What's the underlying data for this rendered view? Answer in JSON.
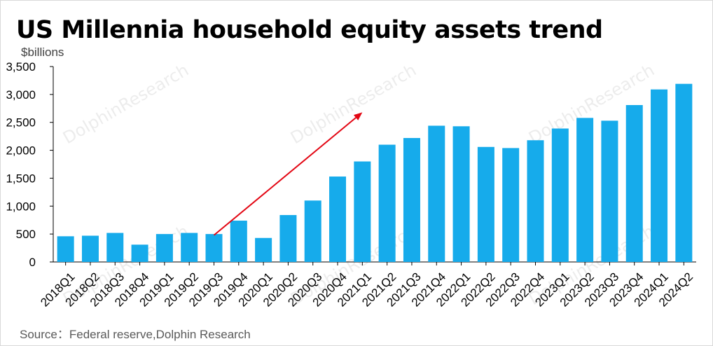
{
  "chart_data": {
    "type": "bar",
    "title": "US Millennia household equity assets trend",
    "ylabel": "$billions",
    "source": "Source：Federal reserve,Dolphin Research",
    "watermark": "DolphinResearch",
    "categories": [
      "2018Q1",
      "2018Q2",
      "2018Q3",
      "2018Q4",
      "2019Q1",
      "2019Q2",
      "2019Q3",
      "2019Q4",
      "2020Q1",
      "2020Q2",
      "2020Q3",
      "2020Q4",
      "2021Q1",
      "2021Q2",
      "2021Q3",
      "2021Q4",
      "2022Q1",
      "2022Q2",
      "2022Q3",
      "2022Q4",
      "2023Q1",
      "2023Q2",
      "2023Q3",
      "2023Q4",
      "2024Q1",
      "2024Q2"
    ],
    "values": [
      460,
      470,
      520,
      310,
      500,
      520,
      500,
      740,
      430,
      840,
      1100,
      1530,
      1800,
      2100,
      2220,
      2440,
      2430,
      2060,
      2040,
      2180,
      2390,
      2580,
      2530,
      2810,
      3090,
      3190
    ],
    "ylim": [
      0,
      3500
    ],
    "yticks": [
      0,
      500,
      1000,
      1500,
      2000,
      2500,
      3000,
      3500
    ],
    "bar_color": "#16ABEB",
    "arrow_color": "#E30613",
    "grid": false,
    "legend": "none",
    "annotation": {
      "type": "arrow",
      "from": {
        "category": "2019Q3",
        "value": 480
      },
      "to": {
        "category": "2021Q1",
        "value": 2680
      }
    }
  }
}
